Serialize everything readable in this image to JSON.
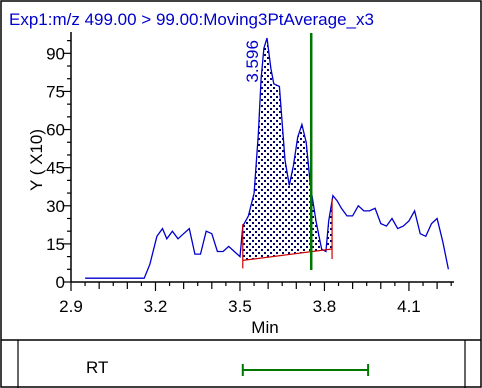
{
  "chart_data": {
    "type": "line",
    "title": "Exp1:m/z 499.00 > 99.00:Moving3PtAverage_x3",
    "xlabel": "Min",
    "ylabel": "Y ( X10)",
    "xlim": [
      2.9,
      4.26
    ],
    "ylim": [
      0,
      98
    ],
    "x_ticks": [
      "2.9",
      "3.2",
      "3.5",
      "3.8",
      "4.1"
    ],
    "y_ticks": [
      "0",
      "15",
      "30",
      "45",
      "60",
      "75",
      "90"
    ],
    "peak_label": "3.596",
    "peak_rt": 3.596,
    "marker_rt": 3.753,
    "integration_start": 3.51,
    "integration_end": 3.827,
    "series": [
      {
        "x": [
          2.95,
          3.08,
          3.16,
          3.18,
          3.205,
          3.225,
          3.24,
          3.26,
          3.28,
          3.3,
          3.32,
          3.34,
          3.36,
          3.38,
          3.4,
          3.42,
          3.44,
          3.46,
          3.48,
          3.5,
          3.51,
          3.53,
          3.55,
          3.565,
          3.575,
          3.585,
          3.596,
          3.61,
          3.62,
          3.64,
          3.66,
          3.675,
          3.69,
          3.705,
          3.72,
          3.735,
          3.75,
          3.77,
          3.79,
          3.805,
          3.815,
          3.83,
          3.845,
          3.86,
          3.88,
          3.9,
          3.92,
          3.94,
          3.96,
          3.98,
          4.0,
          4.02,
          4.04,
          4.06,
          4.08,
          4.1,
          4.12,
          4.14,
          4.16,
          4.18,
          4.2,
          4.22,
          4.24
        ],
        "y": [
          1.5,
          1.5,
          1.5,
          7,
          18,
          21,
          17,
          20,
          17,
          19,
          21,
          11,
          11,
          20,
          19,
          12,
          12,
          14,
          12,
          10,
          22,
          26,
          35,
          58,
          80,
          92,
          96,
          84,
          78,
          77,
          48,
          38,
          46,
          57,
          62,
          55,
          38,
          24,
          13,
          12,
          24,
          34,
          32,
          29,
          26,
          26,
          30,
          28,
          28,
          29,
          23,
          22,
          25,
          21,
          22,
          24,
          28,
          19,
          18,
          23,
          25,
          16,
          5
        ]
      }
    ]
  },
  "rt_panel": {
    "label": "RT",
    "start": 3.51,
    "end": 3.955
  },
  "colors": {
    "trace": "#0000cc",
    "marker": "#007700",
    "baseline": "#cc0000",
    "border": "#000000"
  }
}
